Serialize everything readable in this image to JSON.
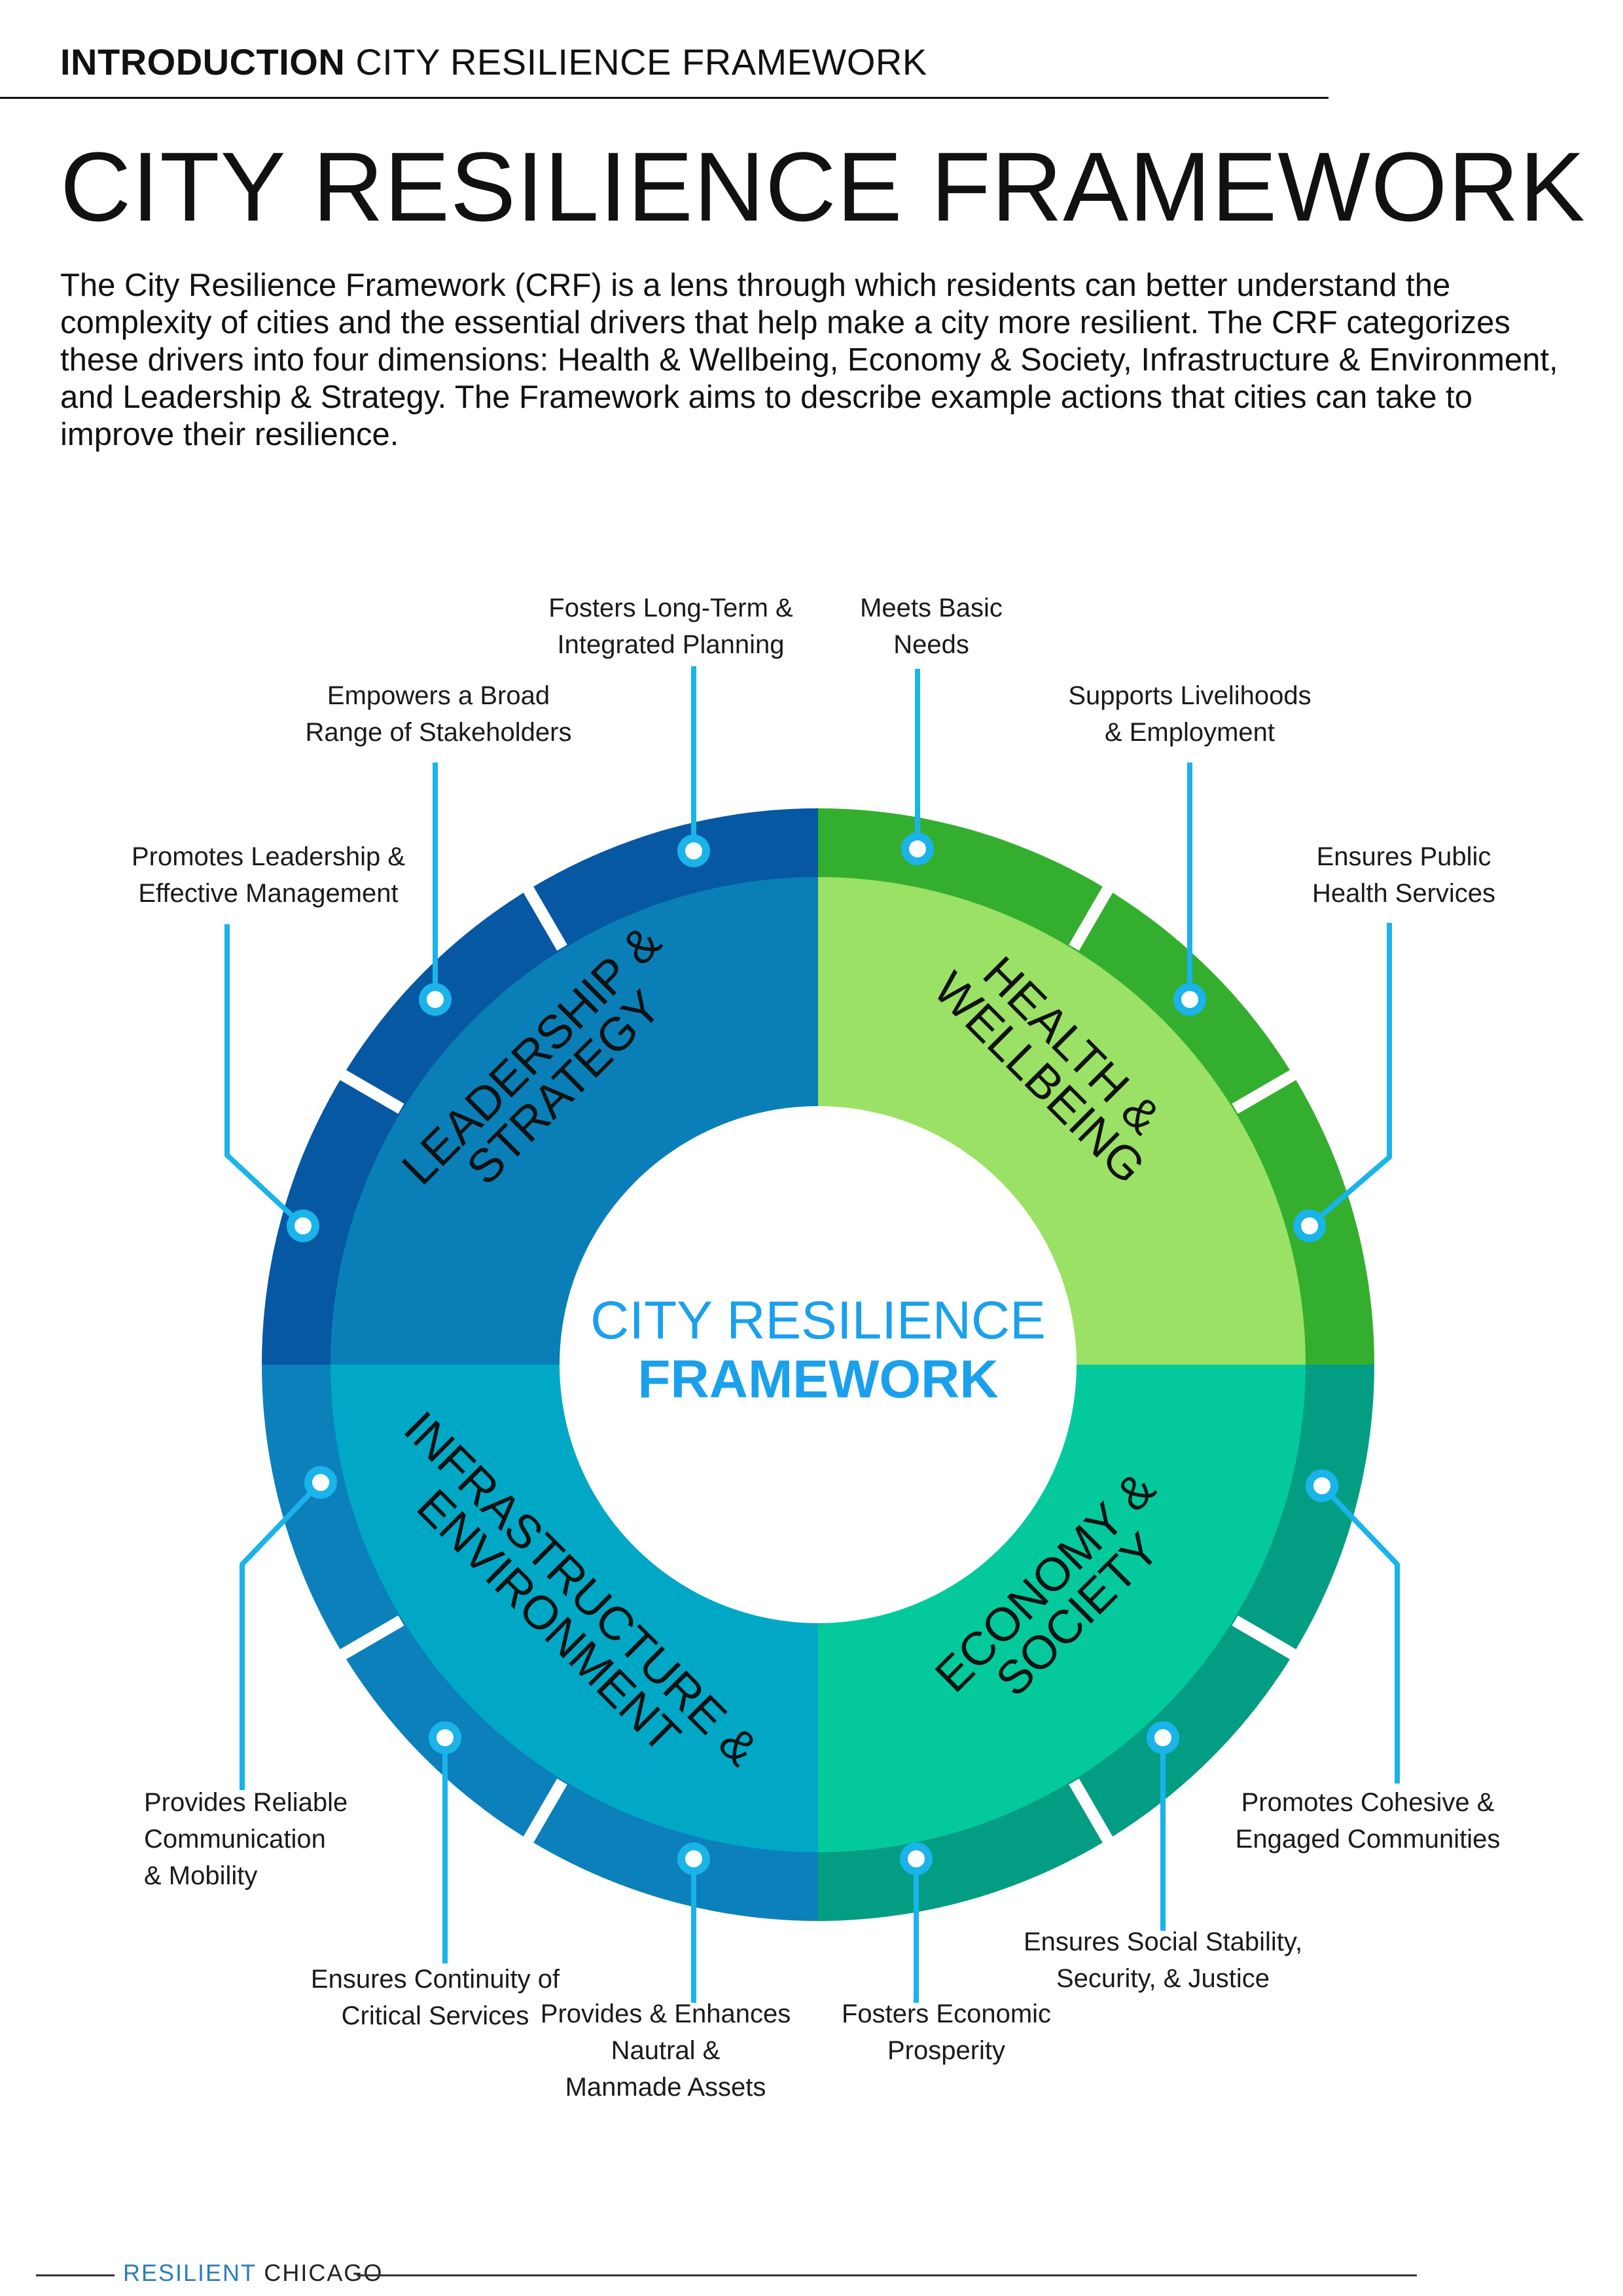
{
  "header": {
    "section": "INTRODUCTION",
    "subtitle": "CITY RESILIENCE FRAMEWORK"
  },
  "title": "CITY RESILIENCE FRAMEWORK",
  "intro": "The City Resilience Framework (CRF) is a lens through which residents can better understand the complexity of cities and the essential drivers that help make a city more resilient. The CRF categorizes these drivers into four dimensions: Health & Wellbeing, Economy & Society, Infrastructure & Environment, and Leadership & Strategy. The Framework aims to describe example actions that cities can take to improve their resilience.",
  "center": {
    "line1": "CITY RESILIENCE",
    "line2": "FRAMEWORK"
  },
  "colors": {
    "leadership_inner": "#0a7fb7",
    "leadership_outer": "#0758a3",
    "health_inner": "#9ae166",
    "health_outer": "#34ae2f",
    "economy_inner": "#03c99c",
    "economy_outer": "#039d83",
    "infrastructure_inner": "#00a8c5",
    "infrastructure_outer": "#0c80bb",
    "connector": "#1ab3ea",
    "center_title": "#1aa0ec",
    "footer_accent": "#2a7fb8"
  },
  "dimensions": {
    "leadership": {
      "line1": "LEADERSHIP &",
      "line2": "STRATEGY"
    },
    "health": {
      "line1": "HEALTH &",
      "line2": "WELLBEING"
    },
    "economy": {
      "line1": "ECONOMY &",
      "line2": "SOCIETY"
    },
    "infrastructure": {
      "line1": "INFRASTRUCTURE &",
      "line2": "ENVIRONMENT"
    }
  },
  "goals": {
    "long_term_planning": [
      "Fosters Long-Term &",
      "Integrated Planning"
    ],
    "basic_needs": [
      "Meets Basic",
      "Needs"
    ],
    "livelihoods": [
      "Supports Livelihoods",
      "& Employment"
    ],
    "public_health": [
      "Ensures Public",
      "Health Services"
    ],
    "stakeholders": [
      "Empowers a Broad",
      "Range of Stakeholders"
    ],
    "leadership_management": [
      "Promotes Leadership &",
      "Effective Management"
    ],
    "communication_mobility": [
      "Provides Reliable",
      "Communication",
      "& Mobility"
    ],
    "critical_services": [
      "Ensures Continuity of",
      "Critical Services"
    ],
    "assets": [
      "Provides & Enhances",
      "Nautral &",
      "Manmade Assets"
    ],
    "economic_prosperity": [
      "Fosters Economic",
      "Prosperity"
    ],
    "social_stability": [
      "Ensures Social Stability,",
      "Security, & Justice"
    ],
    "cohesive_communities": [
      "Promotes Cohesive &",
      "Engaged Communities"
    ]
  },
  "footer": {
    "word1": "RESILIENT",
    "word2": "CHICAGO"
  }
}
